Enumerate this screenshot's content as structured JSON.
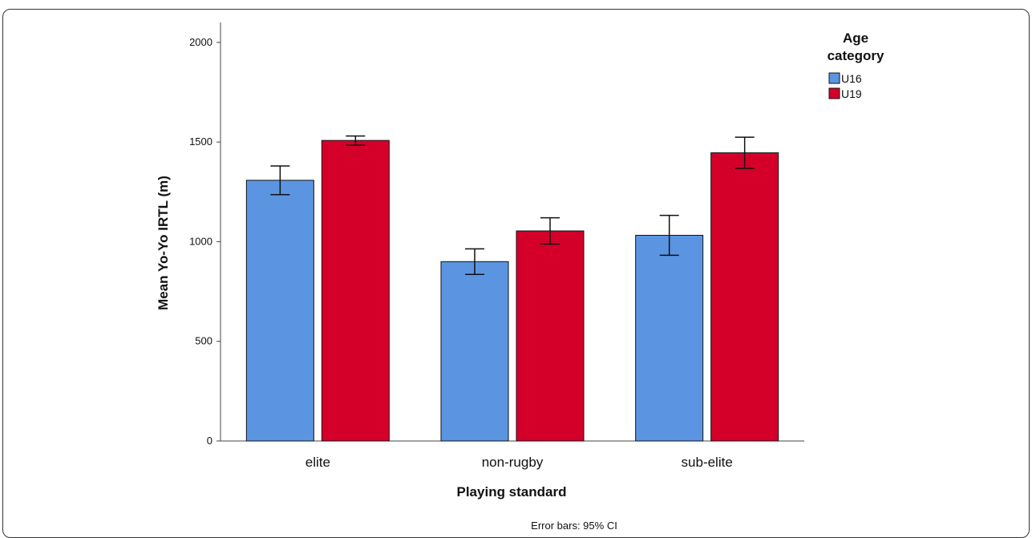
{
  "chart_data": {
    "type": "bar",
    "title": "",
    "xlabel": "Playing standard",
    "ylabel": "Mean Yo-Yo IRTL (m)",
    "categories": [
      "elite",
      "non-rugby",
      "sub-elite"
    ],
    "ylim": [
      0,
      2100
    ],
    "yticks": [
      0,
      500,
      1000,
      1500,
      2000
    ],
    "grid": false,
    "legend": {
      "title": "Age category",
      "title_lines": [
        "Age",
        "category"
      ],
      "placement": "top-right"
    },
    "series": [
      {
        "name": "U16",
        "color": "#5b95e2",
        "values": [
          1308,
          900,
          1032
        ],
        "ci_low": [
          1236,
          836,
          932
        ],
        "ci_high": [
          1380,
          964,
          1132
        ]
      },
      {
        "name": "U19",
        "color": "#d4002a",
        "values": [
          1508,
          1054,
          1446
        ],
        "ci_low": [
          1484,
          988,
          1368
        ],
        "ci_high": [
          1530,
          1120,
          1524
        ]
      }
    ],
    "footnote": "Error bars: 95% CI"
  }
}
